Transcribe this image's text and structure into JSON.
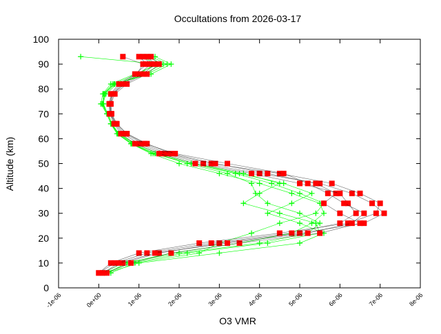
{
  "chart_data": {
    "type": "line",
    "title": "Occultations from 2026-03-17",
    "xlabel": "O3 VMR",
    "ylabel": "Altitude (km)",
    "xlim": [
      -1e-06,
      8e-06
    ],
    "ylim": [
      0,
      100
    ],
    "x_unit_scale": 1e-06,
    "x_ticks": [
      -1,
      0,
      1,
      2,
      3,
      4,
      5,
      6,
      7,
      8
    ],
    "x_tick_labels": [
      "-1e-06",
      "0e+00",
      "1e-06",
      "2e-06",
      "3e-06",
      "4e-06",
      "5e-06",
      "6e-06",
      "7e-06",
      "8e-06"
    ],
    "y_ticks": [
      0,
      10,
      20,
      30,
      40,
      50,
      60,
      70,
      80,
      90,
      100
    ],
    "y_tick_labels": [
      "0",
      "10",
      "20",
      "30",
      "40",
      "50",
      "60",
      "70",
      "80",
      "90",
      "100"
    ],
    "grid": false,
    "legend": "none",
    "altitudes": [
      6,
      10,
      14,
      18,
      22,
      26,
      30,
      34,
      38,
      42,
      46,
      50,
      54,
      58,
      62,
      66,
      70,
      74,
      78,
      82,
      86,
      90,
      93
    ],
    "series": [
      {
        "name": "green",
        "color": "#00ff00",
        "marker": "plus",
        "profiles": [
          [
            0.2,
            0.7,
            1.8,
            3.5,
            4.8,
            5.3,
            5.6,
            5.5,
            4.8,
            4.0,
            3.0,
            2.0,
            1.3,
            0.8,
            0.45,
            0.3,
            0.2,
            0.05,
            0.1,
            0.3,
            0.9,
            1.5,
            -0.45
          ],
          [
            0.1,
            0.6,
            2.0,
            4.0,
            5.2,
            5.5,
            5.0,
            4.2,
            3.9,
            3.8,
            3.2,
            2.2,
            1.4,
            0.85,
            0.5,
            0.3,
            0.2,
            0.1,
            0.15,
            0.4,
            1.2,
            1.7,
            1.3
          ],
          [
            0.3,
            0.9,
            2.5,
            3.0,
            3.8,
            4.5,
            5.4,
            5.6,
            5.0,
            4.3,
            3.4,
            2.3,
            1.35,
            0.8,
            0.48,
            0.32,
            0.22,
            0.12,
            0.12,
            0.35,
            1.0,
            1.4,
            1.1
          ],
          [
            0.15,
            0.8,
            2.2,
            4.2,
            5.5,
            5.4,
            4.5,
            3.6,
            4.0,
            4.5,
            3.6,
            2.4,
            1.5,
            0.9,
            0.5,
            0.33,
            0.23,
            0.1,
            0.18,
            0.45,
            1.1,
            1.6,
            1.2
          ],
          [
            0.2,
            1.0,
            3.0,
            5.0,
            5.6,
            5.0,
            4.2,
            4.8,
            5.3,
            4.6,
            3.5,
            2.3,
            1.4,
            0.82,
            0.47,
            0.3,
            0.2,
            0.08,
            0.13,
            0.38,
            1.3,
            1.8,
            1.4
          ]
        ]
      },
      {
        "name": "red",
        "color": "#ff0000",
        "marker": "square",
        "profiles": [
          [
            0.1,
            0.6,
            1.5,
            3.0,
            5.0,
            6.6,
            7.1,
            6.8,
            6.3,
            5.5,
            4.0,
            2.6,
            1.6,
            1.0,
            0.6,
            0.4,
            0.3,
            0.3,
            0.35,
            0.6,
            1.0,
            1.3,
            1.1
          ],
          [
            0.0,
            0.3,
            1.0,
            2.5,
            4.5,
            6.2,
            6.9,
            7.0,
            6.5,
            5.8,
            4.5,
            2.8,
            1.7,
            1.1,
            0.65,
            0.42,
            0.28,
            0.27,
            0.3,
            0.5,
            0.9,
            1.2,
            1.0
          ],
          [
            0.2,
            0.8,
            1.8,
            3.5,
            5.5,
            6.5,
            6.0,
            5.6,
            5.9,
            5.4,
            4.2,
            2.9,
            1.8,
            1.2,
            0.7,
            0.45,
            0.32,
            0.3,
            0.4,
            0.7,
            1.2,
            1.5,
            1.3
          ],
          [
            0.0,
            0.4,
            1.2,
            2.8,
            4.8,
            6.0,
            6.4,
            6.2,
            6.0,
            5.0,
            3.8,
            2.4,
            1.5,
            0.9,
            0.55,
            0.38,
            0.27,
            0.26,
            0.33,
            0.55,
            0.95,
            1.1,
            0.6
          ],
          [
            0.1,
            0.5,
            1.4,
            3.2,
            5.2,
            6.3,
            6.6,
            6.1,
            5.7,
            5.2,
            4.6,
            3.2,
            1.9,
            1.15,
            0.7,
            0.44,
            0.3,
            0.28,
            0.35,
            0.65,
            1.1,
            1.4,
            1.2
          ]
        ]
      }
    ]
  }
}
